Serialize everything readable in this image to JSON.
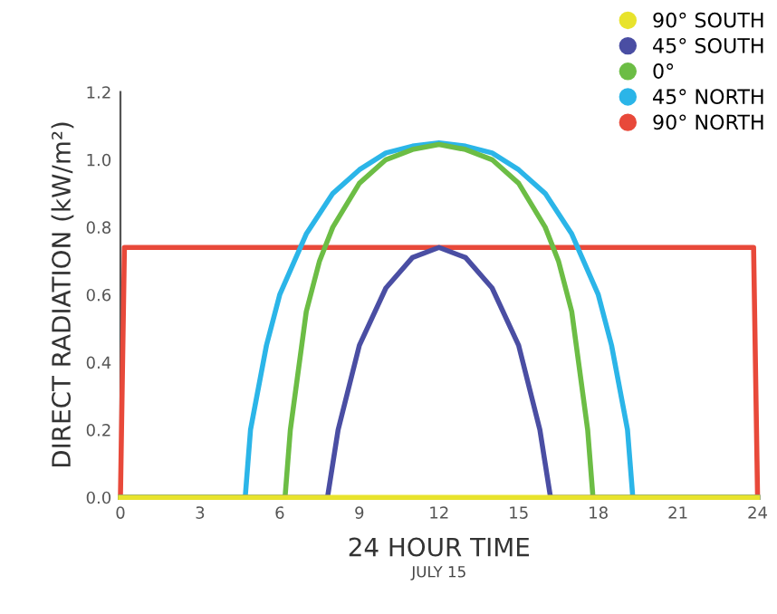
{
  "chart_data": {
    "type": "line",
    "xlabel": "24 HOUR TIME",
    "ylabel": "DIRECT RADIATION (kW/m²)",
    "annotations": [
      "JULY 15"
    ],
    "xlim": [
      0,
      24
    ],
    "xticks": [
      0,
      3,
      6,
      9,
      12,
      15,
      18,
      21,
      24
    ],
    "ylim": [
      0,
      1.2
    ],
    "yticks": [
      {
        "value": 0,
        "label": "0.0"
      },
      0.2,
      0.4,
      0.6,
      0.8,
      {
        "value": 1,
        "label": "1.0"
      },
      1.2
    ],
    "grid": false,
    "legend": "top right",
    "marker": "none",
    "line_style": "solid",
    "series": [
      {
        "name": "90° SOUTH",
        "color": "#e8e32c",
        "x": [
          0,
          24
        ],
        "values": [
          0,
          0
        ]
      },
      {
        "name": "45° SOUTH",
        "color": "#4a4ea3",
        "x": [
          0,
          7.8,
          8.2,
          9,
          10,
          11,
          12,
          13,
          14,
          15,
          15.8,
          16.2,
          24
        ],
        "values": [
          0,
          0,
          0.2,
          0.45,
          0.62,
          0.71,
          0.74,
          0.71,
          0.62,
          0.45,
          0.2,
          0,
          0
        ]
      },
      {
        "name": "0°",
        "color": "#6cbd45",
        "x": [
          0,
          6.2,
          6.4,
          7,
          7.5,
          8,
          9,
          10,
          11,
          12,
          13,
          14,
          15,
          16,
          16.5,
          17,
          17.6,
          17.8,
          24
        ],
        "values": [
          0,
          0,
          0.2,
          0.55,
          0.7,
          0.8,
          0.93,
          1.0,
          1.03,
          1.045,
          1.03,
          1.0,
          0.93,
          0.8,
          0.7,
          0.55,
          0.2,
          0,
          0
        ]
      },
      {
        "name": "45° NORTH",
        "color": "#2bb5e8",
        "x": [
          0,
          4.7,
          4.9,
          5.5,
          6,
          7,
          8,
          9,
          10,
          11,
          12,
          13,
          14,
          15,
          16,
          17,
          18,
          18.5,
          19.1,
          19.3,
          24
        ],
        "values": [
          0,
          0,
          0.2,
          0.45,
          0.6,
          0.78,
          0.9,
          0.97,
          1.02,
          1.04,
          1.05,
          1.04,
          1.02,
          0.97,
          0.9,
          0.78,
          0.6,
          0.45,
          0.2,
          0,
          0
        ]
      },
      {
        "name": "90° NORTH",
        "color": "#e8493a",
        "x": [
          0,
          0.15,
          23.85,
          24
        ],
        "values": [
          0,
          0.74,
          0.74,
          0
        ]
      }
    ]
  }
}
